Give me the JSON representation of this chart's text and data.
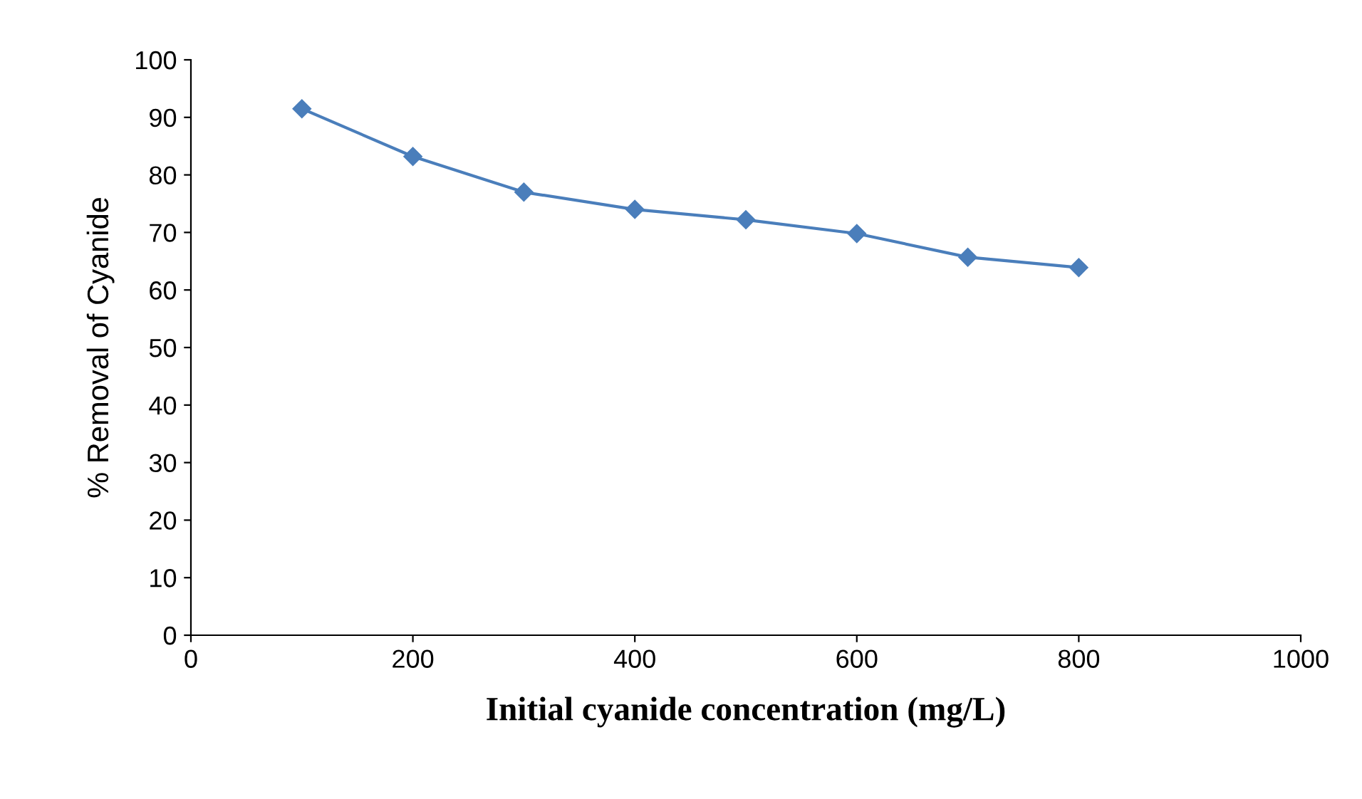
{
  "chart_data": {
    "type": "line",
    "xlabel": "Initial cyanide concentration (mg/L)",
    "ylabel": "% Removal of Cyanide",
    "x": [
      100,
      200,
      300,
      400,
      500,
      600,
      700,
      800
    ],
    "series": [
      {
        "color": "#4a7ebb",
        "values": [
          91.5,
          83.2,
          77.0,
          74.0,
          72.2,
          69.8,
          65.7,
          63.9
        ]
      }
    ],
    "xlim": [
      0,
      1000
    ],
    "xticks": [
      0,
      200,
      400,
      600,
      800,
      1000
    ],
    "ylim": [
      0,
      100
    ],
    "yticks": [
      0,
      10,
      20,
      30,
      40,
      50,
      60,
      70,
      80,
      90,
      100
    ],
    "grid": false,
    "legend": false,
    "marker": "diamond",
    "line_style": "solid"
  }
}
